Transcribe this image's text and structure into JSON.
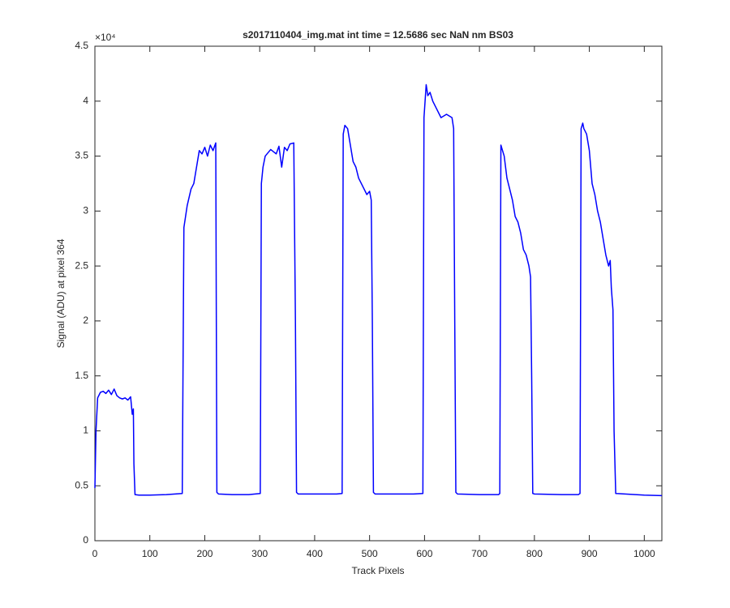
{
  "chart_data": {
    "type": "line",
    "title": "s2017110404_img.mat int time = 12.5686 sec  NaN nm BS03",
    "x_label": "Track Pixels",
    "y_label": "Signal (ADU) at pixel 364",
    "y_multiplier": "×10⁴",
    "color": "#0000ff",
    "xlim": [
      0,
      1032
    ],
    "ylim": [
      0,
      45000
    ],
    "xticks": [
      0,
      100,
      200,
      300,
      400,
      500,
      600,
      700,
      800,
      900,
      1000
    ],
    "yticks": [
      0,
      {
        "value": 5000,
        "label": "0.5"
      },
      {
        "value": 10000,
        "label": "1"
      },
      {
        "value": 15000,
        "label": "1.5"
      },
      {
        "value": 20000,
        "label": "2"
      },
      {
        "value": 25000,
        "label": "2.5"
      },
      {
        "value": 30000,
        "label": "3"
      },
      {
        "value": 35000,
        "label": "3.5"
      },
      {
        "value": 40000,
        "label": "4"
      },
      {
        "value": 45000,
        "label": "4.5"
      }
    ],
    "x": [
      0,
      2,
      5,
      10,
      15,
      20,
      25,
      30,
      35,
      40,
      45,
      50,
      55,
      60,
      65,
      68,
      70,
      71,
      73,
      80,
      100,
      130,
      159,
      162,
      165,
      168,
      175,
      180,
      185,
      190,
      195,
      200,
      205,
      210,
      215,
      220,
      222,
      225,
      250,
      280,
      301,
      303,
      306,
      310,
      320,
      330,
      335,
      340,
      345,
      350,
      355,
      362,
      365,
      367,
      370,
      400,
      440,
      450,
      452,
      455,
      460,
      465,
      470,
      475,
      480,
      490,
      495,
      500,
      503,
      505,
      507,
      510,
      540,
      580,
      597,
      599,
      601,
      603,
      606,
      610,
      615,
      620,
      630,
      640,
      650,
      653,
      655,
      657,
      660,
      700,
      735,
      737,
      739,
      742,
      745,
      750,
      755,
      760,
      765,
      770,
      775,
      780,
      785,
      790,
      793,
      795,
      797,
      800,
      850,
      880,
      883,
      885,
      888,
      890,
      895,
      900,
      905,
      910,
      915,
      920,
      925,
      930,
      935,
      938,
      940,
      943,
      945,
      948,
      1000,
      1032
    ],
    "values": [
      4800,
      10000,
      13000,
      13500,
      13600,
      13400,
      13700,
      13300,
      13800,
      13200,
      13000,
      12900,
      13000,
      12800,
      13100,
      11500,
      12000,
      7000,
      4200,
      4150,
      4150,
      4200,
      4300,
      28500,
      29500,
      30500,
      32000,
      32500,
      34000,
      35500,
      35200,
      35800,
      35000,
      36000,
      35500,
      36200,
      4400,
      4250,
      4200,
      4200,
      4300,
      32500,
      34000,
      35000,
      35600,
      35200,
      35900,
      34000,
      35800,
      35500,
      36100,
      36200,
      20000,
      4400,
      4250,
      4250,
      4250,
      4300,
      37000,
      37800,
      37500,
      36000,
      34500,
      34000,
      33000,
      32000,
      31500,
      31800,
      31000,
      20000,
      4400,
      4250,
      4250,
      4250,
      4300,
      38500,
      40000,
      41500,
      40500,
      40800,
      40000,
      39500,
      38500,
      38800,
      38500,
      37500,
      20000,
      4400,
      4250,
      4200,
      4200,
      4300,
      36000,
      35500,
      35000,
      33000,
      32000,
      31000,
      29500,
      29000,
      28000,
      26500,
      26000,
      25000,
      24000,
      15000,
      4300,
      4250,
      4200,
      4200,
      4300,
      37500,
      38000,
      37500,
      37000,
      35500,
      32500,
      31500,
      30000,
      29000,
      27500,
      26000,
      25000,
      25500,
      23000,
      21000,
      10000,
      4300,
      4150,
      4100
    ]
  }
}
